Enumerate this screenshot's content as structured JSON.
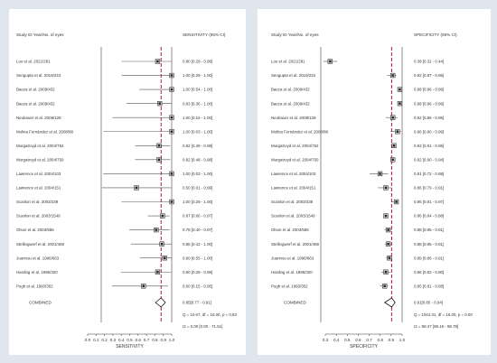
{
  "chart_data": [
    {
      "type": "forest",
      "panel": "sensitivity",
      "column_header_left": "Study ID Year/No. of eyes",
      "column_header_right": "SENSITIVITY (95% CI)",
      "xlabel": "SENSITIVITY",
      "xlim": [
        0,
        1
      ],
      "x_ticks": [
        "0.0",
        "0.1",
        "0.2",
        "0.3",
        "0.4",
        "0.5",
        "0.6",
        "0.7",
        "0.8",
        "0.9",
        "1.0"
      ],
      "pooled_line": 0.85,
      "studies": [
        {
          "label": "Loo et al. 2021/281",
          "estimate": 0.8,
          "lo": 0.29,
          "hi": 0.99,
          "ci_text": "0.80 [0.29 - 0.99]"
        },
        {
          "label": "Sengupta et al. 2019/233",
          "estimate": 1.0,
          "lo": 0.29,
          "hi": 1.0,
          "ci_text": "1.00 [0.29 - 1.00]"
        },
        {
          "label": "Baeza et al. 2009/432",
          "estimate": 1.0,
          "lo": 0.54,
          "hi": 1.0,
          "ci_text": "1.00 [0.54 - 1.00]"
        },
        {
          "label": "Baeza et al. 2009/432",
          "estimate": 0.83,
          "lo": 0.36,
          "hi": 1.0,
          "ci_text": "0.83 [0.36 - 1.00]"
        },
        {
          "label": "Neubauer et al. 2008/128",
          "estimate": 1.0,
          "lo": 0.16,
          "hi": 1.0,
          "ci_text": "1.00 [0.16 - 1.00]"
        },
        {
          "label": "Molina Fernández et al. 2008/88",
          "estimate": 1.0,
          "lo": 0.03,
          "hi": 1.0,
          "ci_text": "1.00 [0.03 - 1.00]"
        },
        {
          "label": "Murgatroyd et al. 2004/752",
          "estimate": 0.82,
          "lo": 0.48,
          "hi": 0.98,
          "ci_text": "0.82 [0.48 - 0.98]"
        },
        {
          "label": "Murgatroyd et al. 2004/750",
          "estimate": 0.82,
          "lo": 0.48,
          "hi": 0.98,
          "ci_text": "0.82 [0.48 - 0.98]"
        },
        {
          "label": "Lawrence et al. 2004/103",
          "estimate": 1.0,
          "lo": 0.03,
          "hi": 1.0,
          "ci_text": "1.00 [0.03 - 1.00]"
        },
        {
          "label": "Lawrence et al. 2004/151",
          "estimate": 0.5,
          "lo": 0.01,
          "hi": 0.99,
          "ci_text": "0.50 [0.01 - 0.99]"
        },
        {
          "label": "Scanlon et al. 2003/239",
          "estimate": 1.0,
          "lo": 0.29,
          "hi": 1.0,
          "ci_text": "1.00 [0.29 - 1.00]"
        },
        {
          "label": "Scanlon et al. 2003/1549",
          "estimate": 0.87,
          "lo": 0.66,
          "hi": 0.97,
          "ci_text": "0.87 [0.66 - 0.97]"
        },
        {
          "label": "Olson et al. 2003/586",
          "estimate": 0.78,
          "lo": 0.4,
          "hi": 0.97,
          "ci_text": "0.78 [0.40 - 0.97]"
        },
        {
          "label": "Stellingwerf et al. 2001/469",
          "estimate": 0.86,
          "lo": 0.42,
          "hi": 1.0,
          "ci_text": "0.86 [0.42 - 1.00]"
        },
        {
          "label": "Joannou et al. 1996/663",
          "estimate": 0.9,
          "lo": 0.55,
          "hi": 1.0,
          "ci_text": "0.90 [0.55 - 1.00]"
        },
        {
          "label": "Harding et al. 1995/320",
          "estimate": 0.8,
          "lo": 0.28,
          "hi": 0.99,
          "ci_text": "0.80 [0.28 - 0.99]"
        },
        {
          "label": "Pugh et al. 1993/352",
          "estimate": 0.6,
          "lo": 0.15,
          "hi": 0.95,
          "ci_text": "0.60 [0.15 - 0.95]"
        }
      ],
      "combined": {
        "label": "COMBINED",
        "estimate": 0.85,
        "lo": 0.77,
        "hi": 0.91,
        "ci_text": "0.85[0.77 - 0.91]"
      },
      "stats": [
        "Q = 10.67, df = 16.00, p = 0.83",
        "I2 = 0.00 [0.00 - 71.51]"
      ]
    },
    {
      "type": "forest",
      "panel": "specificity",
      "column_header_left": "Study ID Year/No. of eyes",
      "column_header_right": "SPECIFICITY (95% CI)",
      "xlabel": "SPECIFICITY",
      "xlim": [
        0.3,
        1
      ],
      "x_ticks": [
        "0.3",
        "0.4",
        "0.5",
        "0.6",
        "0.7",
        "0.8",
        "0.9",
        "1.0"
      ],
      "pooled_line": 0.91,
      "studies": [
        {
          "label": "Loo et al. 2021/281",
          "estimate": 0.38,
          "lo": 0.32,
          "hi": 0.44,
          "ci_text": "0.38 [0.32 - 0.44]"
        },
        {
          "label": "Sengupta et al. 2019/233",
          "estimate": 0.92,
          "lo": 0.87,
          "hi": 0.95,
          "ci_text": "0.92 [0.87 - 0.95]"
        },
        {
          "label": "Baeza et al. 2009/432",
          "estimate": 0.98,
          "lo": 0.96,
          "hi": 0.99,
          "ci_text": "0.98 [0.96 - 0.99]"
        },
        {
          "label": "Baeza et al. 2009/432",
          "estimate": 0.98,
          "lo": 0.96,
          "hi": 0.99,
          "ci_text": "0.98 [0.96 - 0.99]"
        },
        {
          "label": "Neubauer et al. 2008/128",
          "estimate": 0.92,
          "lo": 0.86,
          "hi": 0.96,
          "ci_text": "0.92 [0.86 - 0.96]"
        },
        {
          "label": "Molina Fernández et al. 2008/88",
          "estimate": 0.96,
          "lo": 0.9,
          "hi": 0.99,
          "ci_text": "0.96 [0.90 - 0.99]"
        },
        {
          "label": "Murgatroyd et al. 2004/752",
          "estimate": 0.93,
          "lo": 0.91,
          "hi": 0.95,
          "ci_text": "0.93 [0.91 - 0.95]"
        },
        {
          "label": "Murgatroyd et al. 2004/750",
          "estimate": 0.92,
          "lo": 0.9,
          "hi": 0.94,
          "ci_text": "0.92 [0.90 - 0.94]"
        },
        {
          "label": "Lawrence et al. 2004/103",
          "estimate": 0.81,
          "lo": 0.72,
          "hi": 0.88,
          "ci_text": "0.81 [0.72 - 0.88]"
        },
        {
          "label": "Lawrence et al. 2004/151",
          "estimate": 0.86,
          "lo": 0.79,
          "hi": 0.91,
          "ci_text": "0.86 [0.79 - 0.91]"
        },
        {
          "label": "Scanlon et al. 2003/239",
          "estimate": 0.95,
          "lo": 0.91,
          "hi": 0.97,
          "ci_text": "0.95 [0.91 - 0.97]"
        },
        {
          "label": "Scanlon et al. 2003/1549",
          "estimate": 0.86,
          "lo": 0.84,
          "hi": 0.88,
          "ci_text": "0.86 [0.84 - 0.88]"
        },
        {
          "label": "Olson et al. 2003/586",
          "estimate": 0.88,
          "lo": 0.85,
          "hi": 0.91,
          "ci_text": "0.88 [0.85 - 0.91]"
        },
        {
          "label": "Stellingwerf et al. 2001/469",
          "estimate": 0.88,
          "lo": 0.85,
          "hi": 0.91,
          "ci_text": "0.88 [0.85 - 0.91]"
        },
        {
          "label": "Joannou et al. 1996/663",
          "estimate": 0.89,
          "lo": 0.86,
          "hi": 0.91,
          "ci_text": "0.89 [0.86 - 0.91]"
        },
        {
          "label": "Harding et al. 1995/320",
          "estimate": 0.86,
          "lo": 0.82,
          "hi": 0.9,
          "ci_text": "0.86 [0.82 - 0.90]"
        },
        {
          "label": "Pugh et al. 1993/352",
          "estimate": 0.85,
          "lo": 0.81,
          "hi": 0.88,
          "ci_text": "0.85 [0.81 - 0.88]"
        }
      ],
      "combined": {
        "label": "COMBINED",
        "estimate": 0.91,
        "lo": 0.85,
        "hi": 0.94,
        "ci_text": "0.91[0.85 - 0.94]"
      },
      "stats": [
        "Q = 1044.31, df = 16.00, p = 0.00",
        "I2 = 98.47 [98.16 - 98.78]"
      ]
    }
  ],
  "colors": {
    "background": "#dfe6ee",
    "panel": "#ffffff",
    "pooled_line": "#b0334a",
    "marker": "#222222",
    "text": "#333333"
  }
}
